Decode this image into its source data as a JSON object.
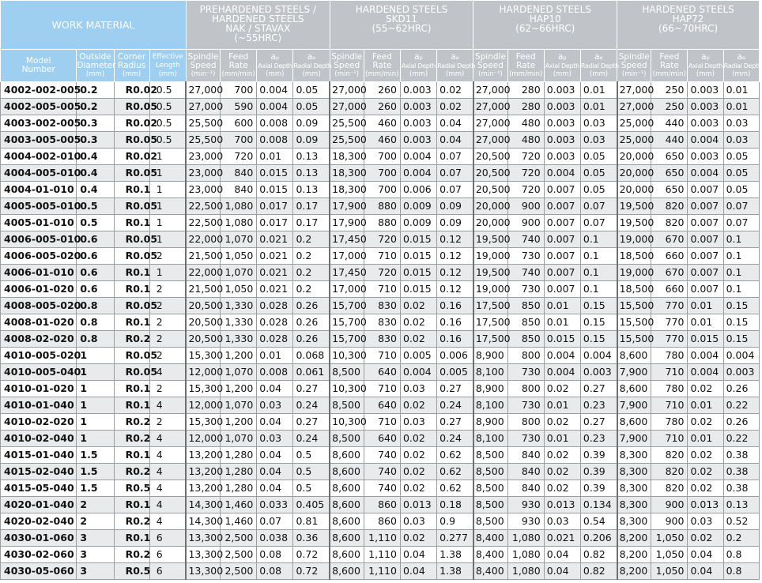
{
  "header": {
    "work_material": "WORK MATERIAL",
    "groups": [
      {
        "lines": [
          "PREHARDENED STEELS /",
          "HARDENED STEELS",
          "NAK / STAVAX",
          "(~55HRC)"
        ]
      },
      {
        "lines": [
          "HARDENED STEELS",
          "SKD11",
          "(55~62HRC)"
        ]
      },
      {
        "lines": [
          "HARDENED STEELS",
          "HAP10",
          "(62~66HRC)"
        ]
      },
      {
        "lines": [
          "HARDENED STEELS",
          "HAP72",
          "(66~70HRC)"
        ]
      }
    ],
    "columns": {
      "model": [
        "Model",
        "Number"
      ],
      "outside_diameter": [
        "Outside",
        "Diameter",
        "(mm)"
      ],
      "corner_radius": [
        "Corner",
        "Radius",
        "(mm)"
      ],
      "effective_length": [
        "Effective",
        "Length",
        "(mm)"
      ],
      "spindle_speed": [
        "Spindle",
        "Speed",
        "(min⁻¹)"
      ],
      "feed_rate": [
        "Feed",
        "Rate",
        "(mm/min)"
      ],
      "axial_depth": [
        "aₚ",
        "Axial Depth",
        "(mm)"
      ],
      "radial_depth": [
        "aₑ",
        "Radial Depth",
        "(mm)"
      ]
    }
  },
  "rows": [
    {
      "model": "4002-002-005",
      "od": "0.2",
      "cr": "R0.02",
      "el": "0.5",
      "c": [
        [
          "27,000",
          "700",
          "0.004",
          "0.05"
        ],
        [
          "27,000",
          "260",
          "0.003",
          "0.02"
        ],
        [
          "27,000",
          "280",
          "0.003",
          "0.01"
        ],
        [
          "27,000",
          "250",
          "0.003",
          "0.01"
        ]
      ]
    },
    {
      "model": "4002-005-005",
      "od": "0.2",
      "cr": "R0.05",
      "el": "0.5",
      "c": [
        [
          "27,000",
          "590",
          "0.004",
          "0.05"
        ],
        [
          "27,000",
          "260",
          "0.003",
          "0.02"
        ],
        [
          "27,000",
          "280",
          "0.003",
          "0.01"
        ],
        [
          "27,000",
          "250",
          "0.003",
          "0.01"
        ]
      ]
    },
    {
      "model": "4003-002-005",
      "od": "0.3",
      "cr": "R0.02",
      "el": "0.5",
      "c": [
        [
          "25,500",
          "600",
          "0.008",
          "0.09"
        ],
        [
          "25,500",
          "460",
          "0.003",
          "0.04"
        ],
        [
          "27,000",
          "480",
          "0.003",
          "0.03"
        ],
        [
          "25,000",
          "440",
          "0.003",
          "0.03"
        ]
      ]
    },
    {
      "model": "4003-005-005",
      "od": "0.3",
      "cr": "R0.05",
      "el": "0.5",
      "c": [
        [
          "25,500",
          "700",
          "0.008",
          "0.09"
        ],
        [
          "25,500",
          "460",
          "0.003",
          "0.04"
        ],
        [
          "27,000",
          "480",
          "0.003",
          "0.03"
        ],
        [
          "25,000",
          "440",
          "0.004",
          "0.03"
        ]
      ]
    },
    {
      "model": "4004-002-010",
      "od": "0.4",
      "cr": "R0.02",
      "el": "1",
      "c": [
        [
          "23,000",
          "720",
          "0.01",
          "0.13"
        ],
        [
          "18,300",
          "700",
          "0.004",
          "0.07"
        ],
        [
          "20,500",
          "720",
          "0.003",
          "0.05"
        ],
        [
          "20,000",
          "650",
          "0.003",
          "0.05"
        ]
      ]
    },
    {
      "model": "4004-005-010",
      "od": "0.4",
      "cr": "R0.05",
      "el": "1",
      "c": [
        [
          "23,000",
          "840",
          "0.015",
          "0.13"
        ],
        [
          "18,300",
          "700",
          "0.004",
          "0.07"
        ],
        [
          "20,500",
          "720",
          "0.004",
          "0.05"
        ],
        [
          "20,000",
          "650",
          "0.004",
          "0.05"
        ]
      ]
    },
    {
      "model": "4004-01-010",
      "od": "0.4",
      "cr": "R0.1",
      "el": "1",
      "c": [
        [
          "23,000",
          "840",
          "0.015",
          "0.13"
        ],
        [
          "18,300",
          "700",
          "0.006",
          "0.07"
        ],
        [
          "20,500",
          "720",
          "0.007",
          "0.05"
        ],
        [
          "20,000",
          "650",
          "0.007",
          "0.05"
        ]
      ]
    },
    {
      "model": "4005-005-010",
      "od": "0.5",
      "cr": "R0.05",
      "el": "1",
      "c": [
        [
          "22,500",
          "1,080",
          "0.017",
          "0.17"
        ],
        [
          "17,900",
          "880",
          "0.009",
          "0.09"
        ],
        [
          "20,000",
          "900",
          "0.007",
          "0.07"
        ],
        [
          "19,500",
          "820",
          "0.007",
          "0.07"
        ]
      ]
    },
    {
      "model": "4005-01-010",
      "od": "0.5",
      "cr": "R0.1",
      "el": "1",
      "c": [
        [
          "22,500",
          "1,080",
          "0.017",
          "0.17"
        ],
        [
          "17,900",
          "880",
          "0.009",
          "0.09"
        ],
        [
          "20,000",
          "900",
          "0.007",
          "0.07"
        ],
        [
          "19,500",
          "820",
          "0.007",
          "0.07"
        ]
      ]
    },
    {
      "model": "4006-005-010",
      "od": "0.6",
      "cr": "R0.05",
      "el": "1",
      "c": [
        [
          "22,000",
          "1,070",
          "0.021",
          "0.2"
        ],
        [
          "17,450",
          "720",
          "0.015",
          "0.12"
        ],
        [
          "19,500",
          "740",
          "0.007",
          "0.1"
        ],
        [
          "19,000",
          "670",
          "0.007",
          "0.1"
        ]
      ]
    },
    {
      "model": "4006-005-020",
      "od": "0.6",
      "cr": "R0.05",
      "el": "2",
      "c": [
        [
          "21,500",
          "1,050",
          "0.021",
          "0.2"
        ],
        [
          "17,000",
          "710",
          "0.015",
          "0.12"
        ],
        [
          "19,000",
          "730",
          "0.007",
          "0.1"
        ],
        [
          "18,500",
          "660",
          "0.007",
          "0.1"
        ]
      ]
    },
    {
      "model": "4006-01-010",
      "od": "0.6",
      "cr": "R0.1",
      "el": "1",
      "c": [
        [
          "22,000",
          "1,070",
          "0.021",
          "0.2"
        ],
        [
          "17,450",
          "720",
          "0.015",
          "0.12"
        ],
        [
          "19,500",
          "740",
          "0.007",
          "0.1"
        ],
        [
          "19,000",
          "670",
          "0.007",
          "0.1"
        ]
      ]
    },
    {
      "model": "4006-01-020",
      "od": "0.6",
      "cr": "R0.1",
      "el": "2",
      "c": [
        [
          "21,500",
          "1,050",
          "0.021",
          "0.2"
        ],
        [
          "17,000",
          "710",
          "0.015",
          "0.12"
        ],
        [
          "19,000",
          "730",
          "0.007",
          "0.1"
        ],
        [
          "18,500",
          "660",
          "0.007",
          "0.1"
        ]
      ]
    },
    {
      "model": "4008-005-020",
      "od": "0.8",
      "cr": "R0.05",
      "el": "2",
      "c": [
        [
          "20,500",
          "1,330",
          "0.028",
          "0.26"
        ],
        [
          "15,700",
          "830",
          "0.02",
          "0.16"
        ],
        [
          "17,500",
          "850",
          "0.01",
          "0.15"
        ],
        [
          "15,500",
          "770",
          "0.01",
          "0.15"
        ]
      ]
    },
    {
      "model": "4008-01-020",
      "od": "0.8",
      "cr": "R0.1",
      "el": "2",
      "c": [
        [
          "20,500",
          "1,330",
          "0.028",
          "0.26"
        ],
        [
          "15,700",
          "830",
          "0.02",
          "0.16"
        ],
        [
          "17,500",
          "850",
          "0.01",
          "0.15"
        ],
        [
          "15,500",
          "770",
          "0.01",
          "0.15"
        ]
      ]
    },
    {
      "model": "4008-02-020",
      "od": "0.8",
      "cr": "R0.2",
      "el": "2",
      "c": [
        [
          "20,500",
          "1,330",
          "0.028",
          "0.26"
        ],
        [
          "15,700",
          "830",
          "0.02",
          "0.16"
        ],
        [
          "17,500",
          "850",
          "0.015",
          "0.15"
        ],
        [
          "15,500",
          "770",
          "0.015",
          "0.15"
        ]
      ]
    },
    {
      "model": "4010-005-020",
      "od": "1",
      "cr": "R0.05",
      "el": "2",
      "c": [
        [
          "15,300",
          "1,200",
          "0.01",
          "0.068"
        ],
        [
          "10,300",
          "710",
          "0.005",
          "0.006"
        ],
        [
          "8,900",
          "800",
          "0.004",
          "0.004"
        ],
        [
          "8,600",
          "780",
          "0.004",
          "0.004"
        ]
      ]
    },
    {
      "model": "4010-005-040",
      "od": "1",
      "cr": "R0.05",
      "el": "4",
      "c": [
        [
          "12,000",
          "1,070",
          "0.008",
          "0.061"
        ],
        [
          "8,500",
          "640",
          "0.004",
          "0.005"
        ],
        [
          "8,100",
          "730",
          "0.004",
          "0.003"
        ],
        [
          "7,900",
          "710",
          "0.004",
          "0.003"
        ]
      ]
    },
    {
      "model": "4010-01-020",
      "od": "1",
      "cr": "R0.1",
      "el": "2",
      "c": [
        [
          "15,300",
          "1,200",
          "0.04",
          "0.27"
        ],
        [
          "10,300",
          "710",
          "0.03",
          "0.27"
        ],
        [
          "8,900",
          "800",
          "0.02",
          "0.27"
        ],
        [
          "8,600",
          "780",
          "0.02",
          "0.26"
        ]
      ]
    },
    {
      "model": "4010-01-040",
      "od": "1",
      "cr": "R0.1",
      "el": "4",
      "c": [
        [
          "12,000",
          "1,070",
          "0.03",
          "0.24"
        ],
        [
          "8,500",
          "640",
          "0.02",
          "0.24"
        ],
        [
          "8,100",
          "730",
          "0.01",
          "0.23"
        ],
        [
          "7,900",
          "710",
          "0.01",
          "0.22"
        ]
      ]
    },
    {
      "model": "4010-02-020",
      "od": "1",
      "cr": "R0.2",
      "el": "2",
      "c": [
        [
          "15,300",
          "1,200",
          "0.04",
          "0.27"
        ],
        [
          "10,300",
          "710",
          "0.03",
          "0.27"
        ],
        [
          "8,900",
          "800",
          "0.02",
          "0.27"
        ],
        [
          "8,600",
          "780",
          "0.02",
          "0.26"
        ]
      ]
    },
    {
      "model": "4010-02-040",
      "od": "1",
      "cr": "R0.2",
      "el": "4",
      "c": [
        [
          "12,000",
          "1,070",
          "0.03",
          "0.24"
        ],
        [
          "8,500",
          "640",
          "0.02",
          "0.24"
        ],
        [
          "8,100",
          "730",
          "0.01",
          "0.23"
        ],
        [
          "7,900",
          "710",
          "0.01",
          "0.22"
        ]
      ]
    },
    {
      "model": "4015-01-040",
      "od": "1.5",
      "cr": "R0.1",
      "el": "4",
      "c": [
        [
          "13,200",
          "1,280",
          "0.04",
          "0.5"
        ],
        [
          "8,600",
          "740",
          "0.02",
          "0.62"
        ],
        [
          "8,500",
          "840",
          "0.02",
          "0.39"
        ],
        [
          "8,300",
          "820",
          "0.02",
          "0.38"
        ]
      ]
    },
    {
      "model": "4015-02-040",
      "od": "1.5",
      "cr": "R0.2",
      "el": "4",
      "c": [
        [
          "13,200",
          "1,280",
          "0.04",
          "0.5"
        ],
        [
          "8,600",
          "740",
          "0.02",
          "0.62"
        ],
        [
          "8,500",
          "840",
          "0.02",
          "0.39"
        ],
        [
          "8,300",
          "820",
          "0.02",
          "0.38"
        ]
      ]
    },
    {
      "model": "4015-05-040",
      "od": "1.5",
      "cr": "R0.5",
      "el": "4",
      "c": [
        [
          "13,200",
          "1,280",
          "0.04",
          "0.5"
        ],
        [
          "8,600",
          "740",
          "0.02",
          "0.62"
        ],
        [
          "8,500",
          "840",
          "0.02",
          "0.39"
        ],
        [
          "8,300",
          "820",
          "0.02",
          "0.38"
        ]
      ]
    },
    {
      "model": "4020-01-040",
      "od": "2",
      "cr": "R0.1",
      "el": "4",
      "c": [
        [
          "14,300",
          "1,460",
          "0.033",
          "0.405"
        ],
        [
          "8,600",
          "860",
          "0.013",
          "0.18"
        ],
        [
          "8,500",
          "930",
          "0.013",
          "0.134"
        ],
        [
          "8,300",
          "900",
          "0.013",
          "0.13"
        ]
      ]
    },
    {
      "model": "4020-02-040",
      "od": "2",
      "cr": "R0.2",
      "el": "4",
      "c": [
        [
          "14,300",
          "1,460",
          "0.07",
          "0.81"
        ],
        [
          "8,600",
          "860",
          "0.03",
          "0.9"
        ],
        [
          "8,500",
          "930",
          "0.03",
          "0.54"
        ],
        [
          "8,300",
          "900",
          "0.03",
          "0.52"
        ]
      ]
    },
    {
      "model": "4030-01-060",
      "od": "3",
      "cr": "R0.1",
      "el": "6",
      "c": [
        [
          "13,300",
          "2,500",
          "0.038",
          "0.36"
        ],
        [
          "8,600",
          "1,110",
          "0.02",
          "0.277"
        ],
        [
          "8,400",
          "1,080",
          "0.021",
          "0.206"
        ],
        [
          "8,200",
          "1,050",
          "0.02",
          "0.2"
        ]
      ]
    },
    {
      "model": "4030-02-060",
      "od": "3",
      "cr": "R0.2",
      "el": "6",
      "c": [
        [
          "13,300",
          "2,500",
          "0.08",
          "0.72"
        ],
        [
          "8,600",
          "1,110",
          "0.04",
          "1.38"
        ],
        [
          "8,400",
          "1,080",
          "0.04",
          "0.82"
        ],
        [
          "8,200",
          "1,050",
          "0.04",
          "0.8"
        ]
      ]
    },
    {
      "model": "4030-05-060",
      "od": "3",
      "cr": "R0.5",
      "el": "6",
      "c": [
        [
          "13,300",
          "2,500",
          "0.08",
          "0.72"
        ],
        [
          "8,600",
          "1,110",
          "0.04",
          "1.38"
        ],
        [
          "8,400",
          "1,080",
          "0.04",
          "0.82"
        ],
        [
          "8,200",
          "1,050",
          "0.04",
          "0.8"
        ]
      ]
    }
  ],
  "colors": {
    "header_blue": "#9ecff1",
    "header_gray": "#c0c4c8",
    "row_alt": "#e9eaeb",
    "grid": "#9a9ea2"
  }
}
